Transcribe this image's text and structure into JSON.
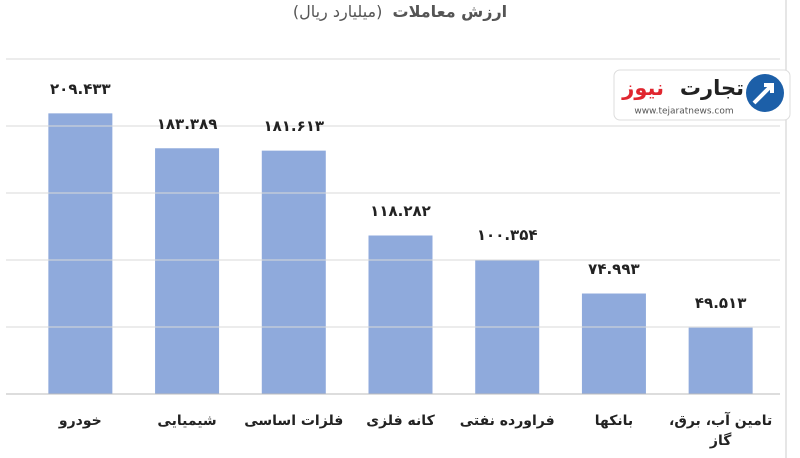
{
  "chart_data": {
    "type": "bar",
    "title": "ارزش معاملات",
    "subtitle": "(میلیارد ریال)",
    "categories": [
      "خودرو",
      "شیمیایی",
      "فلزات اساسی",
      "کانه فلزی",
      "فراورده نفتی",
      "بانکها",
      "تامین آب، برق، گاز"
    ],
    "values": [
      209.433,
      183.389,
      181.613,
      118.282,
      100.354,
      74.993,
      49.513
    ],
    "value_labels": [
      "۲۰۹.۴۳۳",
      "۱۸۳.۳۸۹",
      "۱۸۱.۶۱۳",
      "۱۱۸.۲۸۲",
      "۱۰۰.۳۵۴",
      "۷۴.۹۹۳",
      "۴۹.۵۱۳"
    ],
    "color": "#8faadc",
    "ylim": [
      0,
      250
    ],
    "yticks": [
      0,
      50,
      100,
      150,
      200,
      250
    ],
    "grid": true
  },
  "logo": {
    "name_main": "تجارت",
    "name_accent": "نیوز",
    "url": "www.tejaratnews.com"
  }
}
